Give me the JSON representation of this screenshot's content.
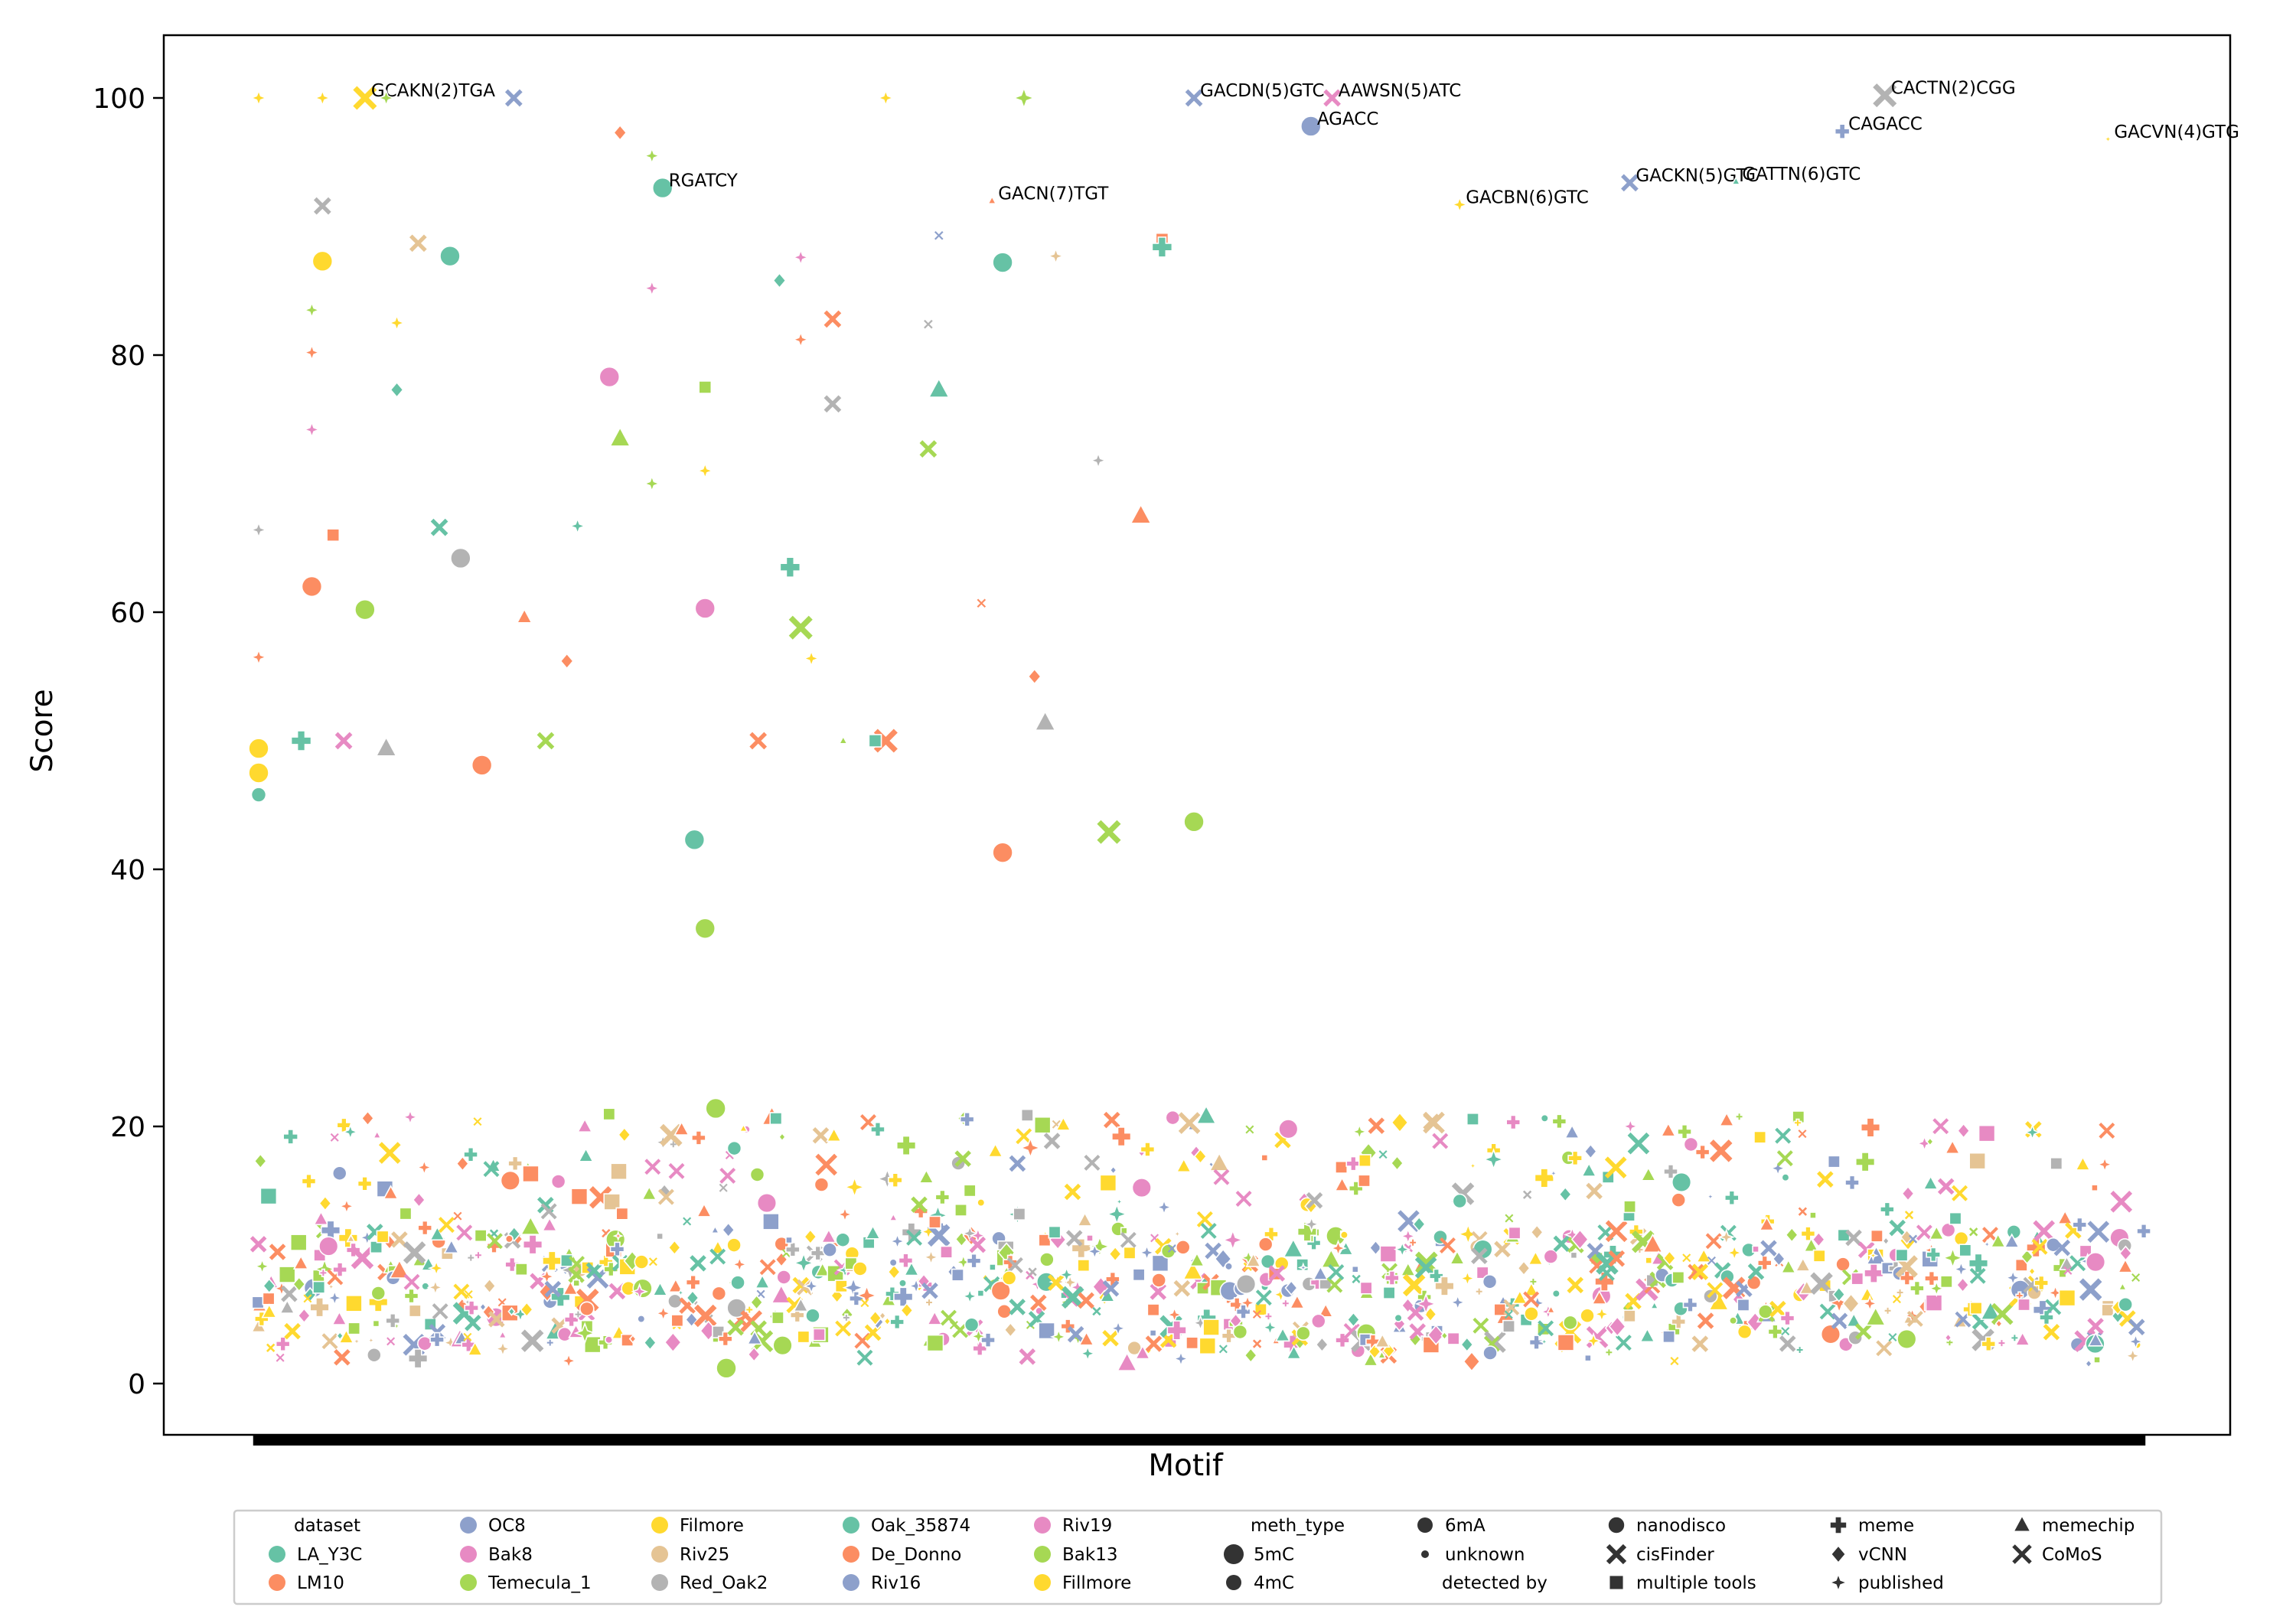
{
  "chart_data": {
    "type": "scatter",
    "title": "",
    "xlabel": "Motif",
    "ylabel": "Score",
    "ylim": [
      -4,
      105
    ],
    "yticks": [
      0,
      20,
      40,
      60,
      80,
      100
    ],
    "x_tick_labels_shown": false,
    "grid": false,
    "legend_placement": "bottom-center",
    "palette": {
      "LA_Y3C": "#66c2a5",
      "LM10": "#fc8d62",
      "OC8": "#8da0cb",
      "Bak8": "#e78ac3",
      "Temecula_1": "#a6d854",
      "Filmore": "#ffd92f",
      "Riv25": "#e5c494",
      "Red_Oak2": "#b3b3b3",
      "Oak_35874": "#66c2a5",
      "De_Donno": "#fc8d62",
      "Riv16": "#8da0cb",
      "Riv19": "#e78ac3",
      "Bak13": "#a6d854",
      "Fillmore": "#ffd92f"
    },
    "legend": {
      "dataset_title": "dataset",
      "datasets": [
        "LA_Y3C",
        "LM10",
        "OC8",
        "Bak8",
        "Temecula_1",
        "Filmore",
        "Riv25",
        "Red_Oak2",
        "Oak_35874",
        "De_Donno",
        "Riv16",
        "Riv19",
        "Bak13",
        "Fillmore"
      ],
      "meth_title": "meth_type",
      "meth_types": [
        "5mC",
        "4mC",
        "6mA",
        "unknown"
      ],
      "tool_title": "detected by",
      "tools": [
        "nanodisco",
        "cisFinder",
        "multiple tools",
        "meme",
        "vCNN",
        "published",
        "memechip",
        "CoMoS"
      ]
    },
    "n_motifs": 178,
    "highlighted_points": [
      {
        "motif": 1,
        "score": 100,
        "dataset": "Filmore",
        "meth": "4mC",
        "tool": "published"
      },
      {
        "motif": 7,
        "score": 100,
        "dataset": "Filmore",
        "meth": "4mC",
        "tool": "published"
      },
      {
        "motif": 11,
        "score": 100,
        "dataset": "Filmore",
        "meth": "5mC",
        "tool": "cisFinder",
        "label": "GCAKN(2)TGA"
      },
      {
        "motif": 13,
        "score": 100,
        "dataset": "Bak13",
        "meth": "4mC",
        "tool": "published"
      },
      {
        "motif": 25,
        "score": 100,
        "dataset": "Riv16",
        "meth": "4mC",
        "tool": "cisFinder"
      },
      {
        "motif": 39,
        "score": 93,
        "dataset": "Oak_35874",
        "meth": "5mC",
        "tool": "nanodisco",
        "label": "RGATCY"
      },
      {
        "motif": 60,
        "score": 100,
        "dataset": "Filmore",
        "meth": "4mC",
        "tool": "published"
      },
      {
        "motif": 70,
        "score": 92,
        "dataset": "De_Donno",
        "meth": "unknown",
        "tool": "memechip",
        "label": "GACN(7)TGT"
      },
      {
        "motif": 73,
        "score": 100,
        "dataset": "Bak13",
        "meth": "5mC",
        "tool": "published"
      },
      {
        "motif": 89,
        "score": 100,
        "dataset": "Riv16",
        "meth": "4mC",
        "tool": "cisFinder",
        "label": "GACDN(5)GTC"
      },
      {
        "motif": 100,
        "score": 97.8,
        "dataset": "Riv16",
        "meth": "5mC",
        "tool": "nanodisco",
        "label": "AGACC"
      },
      {
        "motif": 102,
        "score": 100,
        "dataset": "Bak8",
        "meth": "4mC",
        "tool": "cisFinder",
        "label": "AAWSN(5)ATC"
      },
      {
        "motif": 114,
        "score": 91.7,
        "dataset": "Filmore",
        "meth": "4mC",
        "tool": "published",
        "label": "GACBN(6)GTC"
      },
      {
        "motif": 130,
        "score": 93.4,
        "dataset": "Riv16",
        "meth": "4mC",
        "tool": "cisFinder",
        "label": "GACKN(5)GTC"
      },
      {
        "motif": 140,
        "score": 93.5,
        "dataset": "Oak_35874",
        "meth": "unknown",
        "tool": "memechip",
        "label": "GATTN(6)GTC"
      },
      {
        "motif": 150,
        "score": 97.4,
        "dataset": "Riv16",
        "meth": "4mC",
        "tool": "meme",
        "label": "CAGACC"
      },
      {
        "motif": 154,
        "score": 100.2,
        "dataset": "Red_Oak2",
        "meth": "5mC",
        "tool": "cisFinder",
        "label": "CACTN(2)CGG"
      },
      {
        "motif": 175,
        "score": 96.8,
        "dataset": "Filmore",
        "meth": "unknown",
        "tool": "published",
        "label": "GACVN(4)GTG"
      }
    ],
    "scattered_points": [
      {
        "motif": 1,
        "score": 66.4,
        "dataset": "Red_Oak2",
        "meth": "4mC",
        "tool": "published"
      },
      {
        "motif": 1,
        "score": 56.5,
        "dataset": "LM10",
        "meth": "4mC",
        "tool": "published"
      },
      {
        "motif": 1,
        "score": 49.4,
        "dataset": "Filmore",
        "meth": "5mC",
        "tool": "nanodisco"
      },
      {
        "motif": 1,
        "score": 47.5,
        "dataset": "Filmore",
        "meth": "5mC",
        "tool": "nanodisco"
      },
      {
        "motif": 1,
        "score": 45.8,
        "dataset": "LA_Y3C",
        "meth": "4mC",
        "tool": "nanodisco"
      },
      {
        "motif": 4,
        "score": 19.2,
        "dataset": "LA_Y3C",
        "meth": "4mC",
        "tool": "meme"
      },
      {
        "motif": 5,
        "score": 50,
        "dataset": "LA_Y3C",
        "meth": "5mC",
        "tool": "meme"
      },
      {
        "motif": 7,
        "score": 91.6,
        "dataset": "Red_Oak2",
        "meth": "4mC",
        "tool": "cisFinder"
      },
      {
        "motif": 7,
        "score": 87.3,
        "dataset": "Filmore",
        "meth": "5mC",
        "tool": "nanodisco"
      },
      {
        "motif": 6,
        "score": 83.5,
        "dataset": "Bak13",
        "meth": "4mC",
        "tool": "published"
      },
      {
        "motif": 6,
        "score": 80.2,
        "dataset": "LM10",
        "meth": "4mC",
        "tool": "published"
      },
      {
        "motif": 6,
        "score": 74.2,
        "dataset": "Bak8",
        "meth": "4mC",
        "tool": "published"
      },
      {
        "motif": 8,
        "score": 66,
        "dataset": "LM10",
        "meth": "4mC",
        "tool": "multiple tools"
      },
      {
        "motif": 6,
        "score": 62,
        "dataset": "LM10",
        "meth": "5mC",
        "tool": "nanodisco"
      },
      {
        "motif": 9,
        "score": 50,
        "dataset": "Bak8",
        "meth": "4mC",
        "tool": "cisFinder"
      },
      {
        "motif": 11,
        "score": 60.2,
        "dataset": "Bak13",
        "meth": "5mC",
        "tool": "nanodisco"
      },
      {
        "motif": 14,
        "score": 82.5,
        "dataset": "Filmore",
        "meth": "4mC",
        "tool": "published"
      },
      {
        "motif": 14,
        "score": 77.3,
        "dataset": "Oak_35874",
        "meth": "4mC",
        "tool": "vCNN"
      },
      {
        "motif": 13,
        "score": 49.4,
        "dataset": "Red_Oak2",
        "meth": "5mC",
        "tool": "memechip"
      },
      {
        "motif": 16,
        "score": 88.7,
        "dataset": "Riv25",
        "meth": "4mC",
        "tool": "cisFinder"
      },
      {
        "motif": 19,
        "score": 87.7,
        "dataset": "Oak_35874",
        "meth": "5mC",
        "tool": "nanodisco"
      },
      {
        "motif": 18,
        "score": 66.6,
        "dataset": "Oak_35874",
        "meth": "4mC",
        "tool": "cisFinder"
      },
      {
        "motif": 20,
        "score": 64.2,
        "dataset": "Red_Oak2",
        "meth": "5mC",
        "tool": "nanodisco"
      },
      {
        "motif": 22,
        "score": 48.1,
        "dataset": "LM10",
        "meth": "5mC",
        "tool": "nanodisco"
      },
      {
        "motif": 26,
        "score": 59.6,
        "dataset": "LM10",
        "meth": "4mC",
        "tool": "memechip"
      },
      {
        "motif": 28,
        "score": 50,
        "dataset": "Bak13",
        "meth": "4mC",
        "tool": "cisFinder"
      },
      {
        "motif": 30,
        "score": 56.2,
        "dataset": "LM10",
        "meth": "4mC",
        "tool": "vCNN"
      },
      {
        "motif": 31,
        "score": 66.7,
        "dataset": "Oak_35874",
        "meth": "4mC",
        "tool": "published"
      },
      {
        "motif": 35,
        "score": 97.3,
        "dataset": "LM10",
        "meth": "4mC",
        "tool": "vCNN"
      },
      {
        "motif": 35,
        "score": 73.5,
        "dataset": "Bak13",
        "meth": "5mC",
        "tool": "memechip"
      },
      {
        "motif": 34,
        "score": 78.3,
        "dataset": "Bak8",
        "meth": "5mC",
        "tool": "nanodisco"
      },
      {
        "motif": 38,
        "score": 95.5,
        "dataset": "Bak13",
        "meth": "4mC",
        "tool": "published"
      },
      {
        "motif": 38,
        "score": 85.2,
        "dataset": "Bak8",
        "meth": "4mC",
        "tool": "published"
      },
      {
        "motif": 38,
        "score": 70,
        "dataset": "Bak13",
        "meth": "4mC",
        "tool": "published"
      },
      {
        "motif": 43,
        "score": 77.5,
        "dataset": "Bak13",
        "meth": "4mC",
        "tool": "multiple tools"
      },
      {
        "motif": 43,
        "score": 71,
        "dataset": "Filmore",
        "meth": "4mC",
        "tool": "published"
      },
      {
        "motif": 43,
        "score": 60.3,
        "dataset": "Bak8",
        "meth": "5mC",
        "tool": "nanodisco"
      },
      {
        "motif": 42,
        "score": 42.3,
        "dataset": "Oak_35874",
        "meth": "5mC",
        "tool": "nanodisco"
      },
      {
        "motif": 43,
        "score": 35.4,
        "dataset": "Bak13",
        "meth": "5mC",
        "tool": "nanodisco"
      },
      {
        "motif": 44,
        "score": 21.4,
        "dataset": "Bak13",
        "meth": "5mC",
        "tool": "nanodisco"
      },
      {
        "motif": 45,
        "score": 1.2,
        "dataset": "Bak13",
        "meth": "5mC",
        "tool": "nanodisco"
      },
      {
        "motif": 50,
        "score": 85.8,
        "dataset": "Oak_35874",
        "meth": "4mC",
        "tool": "vCNN"
      },
      {
        "motif": 52,
        "score": 87.6,
        "dataset": "Bak8",
        "meth": "4mC",
        "tool": "published"
      },
      {
        "motif": 52,
        "score": 81.2,
        "dataset": "LM10",
        "meth": "4mC",
        "tool": "published"
      },
      {
        "motif": 55,
        "score": 82.8,
        "dataset": "LM10",
        "meth": "4mC",
        "tool": "cisFinder"
      },
      {
        "motif": 55,
        "score": 76.2,
        "dataset": "Red_Oak2",
        "meth": "4mC",
        "tool": "cisFinder"
      },
      {
        "motif": 51,
        "score": 63.5,
        "dataset": "Oak_35874",
        "meth": "5mC",
        "tool": "meme"
      },
      {
        "motif": 52,
        "score": 58.8,
        "dataset": "Bak13",
        "meth": "5mC",
        "tool": "cisFinder"
      },
      {
        "motif": 53,
        "score": 56.4,
        "dataset": "Filmore",
        "meth": "4mC",
        "tool": "published"
      },
      {
        "motif": 48,
        "score": 50,
        "dataset": "LM10",
        "meth": "4mC",
        "tool": "cisFinder"
      },
      {
        "motif": 56,
        "score": 50,
        "dataset": "Bak13",
        "meth": "unknown",
        "tool": "memechip"
      },
      {
        "motif": 65,
        "score": 89.3,
        "dataset": "Riv16",
        "meth": "unknown",
        "tool": "CoMoS"
      },
      {
        "motif": 60,
        "score": 50,
        "dataset": "LM10",
        "meth": "5mC",
        "tool": "cisFinder"
      },
      {
        "motif": 59,
        "score": 50,
        "dataset": "Oak_35874",
        "meth": "4mC",
        "tool": "multiple tools"
      },
      {
        "motif": 86,
        "score": 89,
        "dataset": "LM10",
        "meth": "4mC",
        "tool": "multiple tools"
      },
      {
        "motif": 86,
        "score": 88.4,
        "dataset": "Oak_35874",
        "meth": "5mC",
        "tool": "meme"
      },
      {
        "motif": 84,
        "score": 67.5,
        "dataset": "LM10",
        "meth": "5mC",
        "tool": "memechip"
      },
      {
        "motif": 80,
        "score": 71.8,
        "dataset": "Red_Oak2",
        "meth": "4mC",
        "tool": "published"
      },
      {
        "motif": 76,
        "score": 87.7,
        "dataset": "Riv25",
        "meth": "4mC",
        "tool": "published"
      },
      {
        "motif": 74,
        "score": 55,
        "dataset": "LM10",
        "meth": "4mC",
        "tool": "vCNN"
      },
      {
        "motif": 75,
        "score": 51.4,
        "dataset": "Red_Oak2",
        "meth": "5mC",
        "tool": "memechip"
      },
      {
        "motif": 71,
        "score": 87.2,
        "dataset": "Oak_35874",
        "meth": "5mC",
        "tool": "nanodisco"
      },
      {
        "motif": 69,
        "score": 60.7,
        "dataset": "LM10",
        "meth": "unknown",
        "tool": "CoMoS"
      },
      {
        "motif": 65,
        "score": 77.3,
        "dataset": "Oak_35874",
        "meth": "5mC",
        "tool": "memechip"
      },
      {
        "motif": 64,
        "score": 72.7,
        "dataset": "Bak13",
        "meth": "4mC",
        "tool": "cisFinder"
      },
      {
        "motif": 64,
        "score": 82.4,
        "dataset": "Red_Oak2",
        "meth": "unknown",
        "tool": "CoMoS"
      },
      {
        "motif": 89,
        "score": 43.7,
        "dataset": "Bak13",
        "meth": "5mC",
        "tool": "nanodisco"
      },
      {
        "motif": 81,
        "score": 42.9,
        "dataset": "Bak13",
        "meth": "5mC",
        "tool": "cisFinder"
      },
      {
        "motif": 71,
        "score": 41.3,
        "dataset": "LM10",
        "meth": "5mC",
        "tool": "nanodisco"
      }
    ],
    "annotations": [
      "GCAKN(2)TGA",
      "RGATCY",
      "GACN(7)TGT",
      "GACDN(5)GTC",
      "AAWSN(5)ATC",
      "AGACC",
      "GACBN(6)GTC",
      "GACKN(5)GTC",
      "GATTN(6)GTC",
      "CAGACC",
      "CACTN(2)CGG",
      "GACVN(4)GTG"
    ],
    "low_band_summary": "dense cluster of points for every motif with scores roughly 1–20, most between 3 and 12"
  }
}
